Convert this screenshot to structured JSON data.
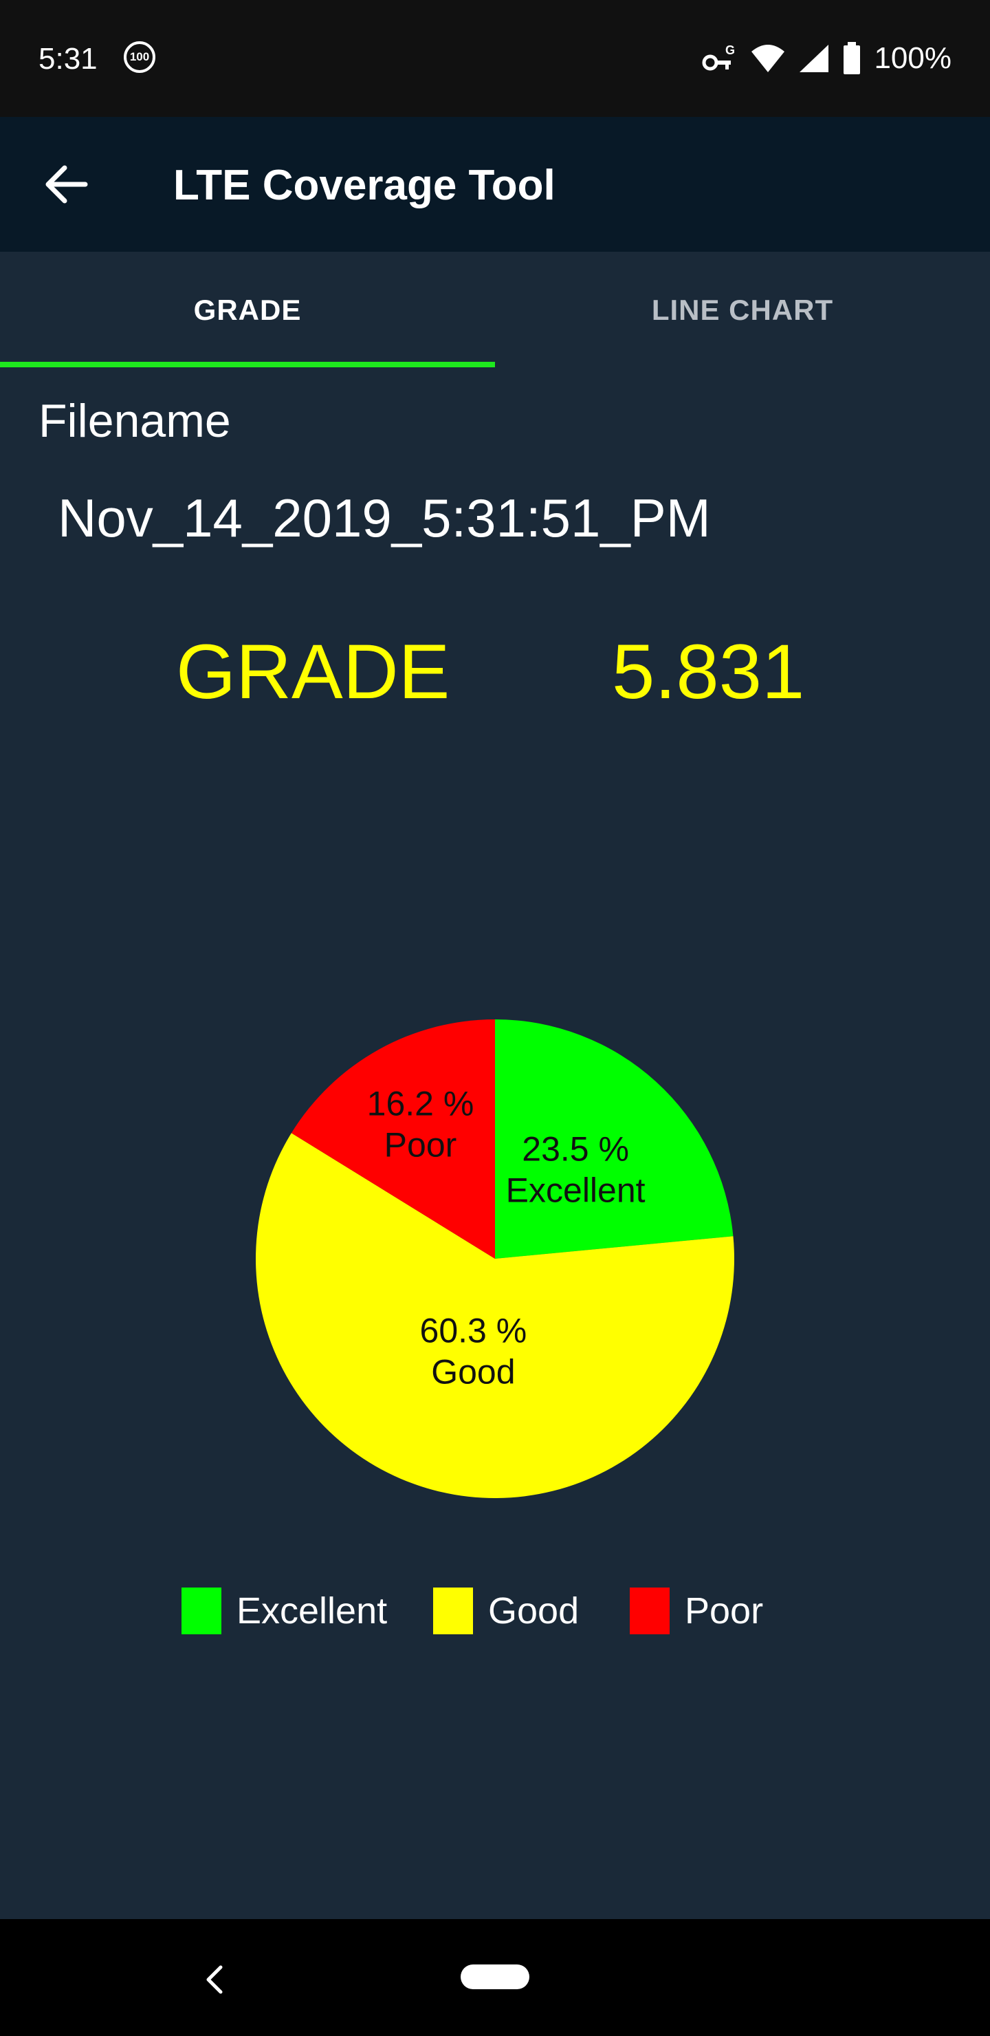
{
  "status_bar": {
    "time": "5:31",
    "notification_badge": "100",
    "battery_percent": "100%",
    "icons": [
      "vpn-key-icon",
      "wifi-icon",
      "cell-signal-icon",
      "battery-icon"
    ]
  },
  "app_bar": {
    "title": "LTE Coverage Tool",
    "back_icon": "arrow-back-icon"
  },
  "tabs": [
    {
      "label": "GRADE",
      "selected": true
    },
    {
      "label": "LINE CHART",
      "selected": false
    }
  ],
  "accent_color": "#1ee81e",
  "file": {
    "label": "Filename",
    "name": "Nov_14_2019_5:31:51_PM"
  },
  "grade": {
    "label": "GRADE",
    "value": "5.831"
  },
  "chart_data": {
    "type": "pie",
    "slices": [
      {
        "name": "Excellent",
        "percent_label": "23.5 %",
        "value": 23.5,
        "color": "#00ff00"
      },
      {
        "name": "Good",
        "percent_label": "60.3 %",
        "value": 60.3,
        "color": "#ffff00"
      },
      {
        "name": "Poor",
        "percent_label": "16.2 %",
        "value": 16.2,
        "color": "#ff0000"
      }
    ],
    "legend": [
      "Excellent",
      "Good",
      "Poor"
    ],
    "legend_position": "bottom"
  },
  "nav_bar": {
    "back_icon": "nav-back-icon",
    "home_icon": "home-pill-icon"
  }
}
